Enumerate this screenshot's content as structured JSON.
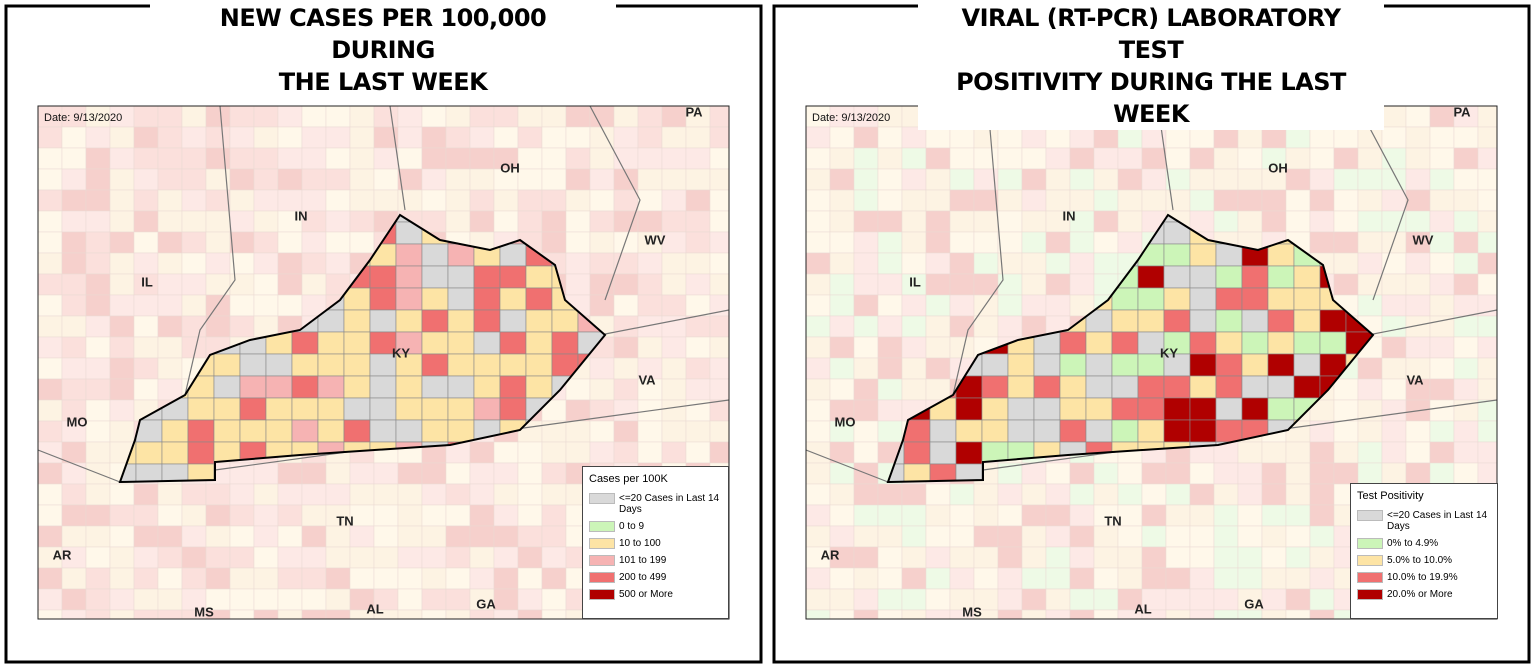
{
  "panels": [
    {
      "title_lines": [
        "NEW CASES PER 100,000 DURING",
        "THE LAST WEEK"
      ],
      "date": "Date: 9/13/2020",
      "state_labels": [
        "PA",
        "OH",
        "IN",
        "WV",
        "IL",
        "KY",
        "VA",
        "MO",
        "TN",
        "AR",
        "MS",
        "AL",
        "GA"
      ],
      "legend": {
        "title": "Cases per 100K",
        "items": [
          {
            "label": "<=20 Cases in Last 14 Days",
            "color": "#d9d9d9"
          },
          {
            "label": "0 to 9",
            "color": "#ccf5b8"
          },
          {
            "label": "10  to 100",
            "color": "#fde4a5"
          },
          {
            "label": "101 to 199",
            "color": "#f6b3b3"
          },
          {
            "label": "200 to 499",
            "color": "#f07070"
          },
          {
            "label": "500 or More",
            "color": "#b00000"
          }
        ]
      }
    },
    {
      "title_lines": [
        "VIRAL (RT-PCR) LABORATORY TEST",
        "POSITIVITY DURING THE LAST WEEK"
      ],
      "date": "Date: 9/13/2020",
      "state_labels": [
        "PA",
        "OH",
        "IN",
        "WV",
        "IL",
        "KY",
        "VA",
        "MO",
        "TN",
        "AR",
        "MS",
        "AL",
        "GA"
      ],
      "legend": {
        "title": "Test Positivity",
        "items": [
          {
            "label": "<=20 Cases in Last 14 Days",
            "color": "#d9d9d9"
          },
          {
            "label": "0% to 4.9%",
            "color": "#ccf5b8"
          },
          {
            "label": "5.0% to 10.0%",
            "color": "#fde4a5"
          },
          {
            "label": "10.0% to 19.9%",
            "color": "#f07070"
          },
          {
            "label": "20.0% or More",
            "color": "#b00000"
          }
        ]
      }
    }
  ]
}
